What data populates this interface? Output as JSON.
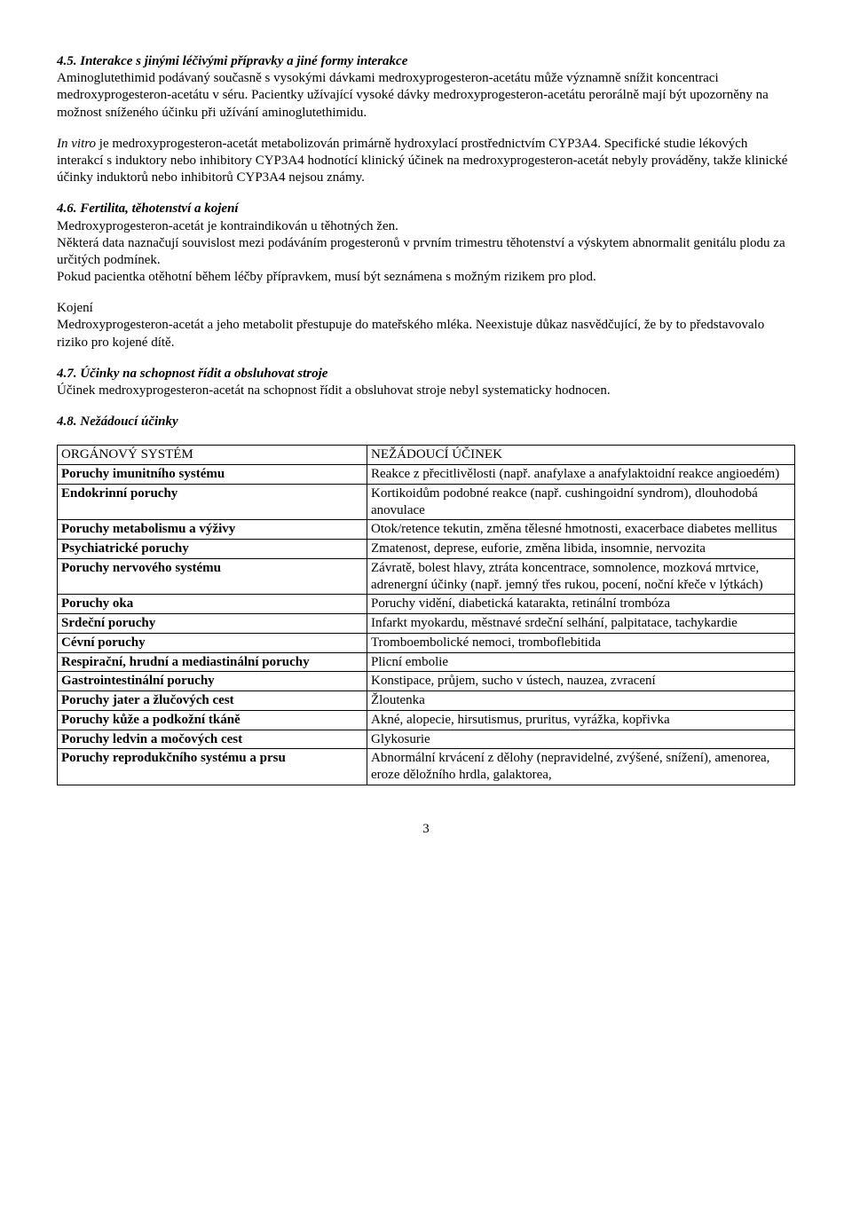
{
  "s45": {
    "title": "4.5. Interakce s jinými léčivými přípravky a jiné formy interakce",
    "p1": "Aminoglutethimid podávaný současně s vysokými dávkami medroxyprogesteron-acetátu může významně snížit koncentraci medroxyprogesteron-acetátu v séru. Pacientky užívající vysoké dávky medroxyprogesteron-acetátu perorálně mají být upozorněny na možnost sníženého účinku při užívání aminoglutethimidu.",
    "p2_prefix_italic": "In vitro",
    "p2_rest": " je medroxyprogesteron-acetát metabolizován primárně hydroxylací prostřednictvím CYP3A4. Specifické studie lékových interakcí s induktory nebo inhibitory CYP3A4 hodnotící klinický účinek na medroxyprogesteron-acetát nebyly prováděny, takže klinické účinky induktorů nebo inhibitorů CYP3A4 nejsou známy."
  },
  "s46": {
    "title": "4.6. Fertilita, těhotenství a kojení",
    "p1": "Medroxyprogesteron-acetát je kontraindikován u těhotných žen.",
    "p2": "Některá data naznačují souvislost mezi podáváním progesteronů v prvním trimestru těhotenství a výskytem abnormalit genitálu plodu za určitých podmínek.",
    "p3": "Pokud pacientka otěhotní během léčby přípravkem, musí být seznámena s možným rizikem pro plod.",
    "kojeni_label": "Kojení",
    "kojeni_text": "Medroxyprogesteron-acetát a jeho metabolit přestupuje do mateřského mléka. Neexistuje důkaz nasvědčující, že by to představovalo riziko pro kojené dítě."
  },
  "s47": {
    "title": "4.7. Účinky na schopnost řídit a obsluhovat stroje",
    "p1": "Účinek medroxyprogesteron-acetát na schopnost řídit a obsluhovat stroje nebyl systematicky hodnocen."
  },
  "s48": {
    "title": "4.8. Nežádoucí účinky"
  },
  "table": {
    "header_left": "ORGÁNOVÝ SYSTÉM",
    "header_right": "NEŽÁDOUCÍ ÚČINEK",
    "rows": [
      {
        "l": "Poruchy imunitního systému",
        "r": "Reakce z přecitlivělosti (např. anafylaxe a anafylaktoidní reakce angioedém)"
      },
      {
        "l": "Endokrinní poruchy",
        "r": "Kortikoidům podobné reakce (např. cushingoidní syndrom), dlouhodobá anovulace"
      },
      {
        "l": "Poruchy metabolismu a výživy",
        "r": "Otok/retence tekutin, změna tělesné hmotnosti, exacerbace diabetes mellitus"
      },
      {
        "l": "Psychiatrické poruchy",
        "r": "Zmatenost, deprese, euforie, změna libida, insomnie, nervozita"
      },
      {
        "l": "Poruchy nervového systému",
        "r": "Závratě, bolest hlavy, ztráta koncentrace, somnolence, mozková mrtvice, adrenergní účinky (např. jemný třes rukou, pocení, noční křeče v lýtkách)"
      },
      {
        "l": "Poruchy oka",
        "r": "Poruchy vidění, diabetická katarakta, retinální trombóza"
      },
      {
        "l": "Srdeční poruchy",
        "r": "Infarkt myokardu, městnavé srdeční selhání, palpitatace, tachykardie"
      },
      {
        "l": "Cévní poruchy",
        "r": "Tromboembolické nemoci, tromboflebitida"
      },
      {
        "l": "Respirační, hrudní a mediastinální poruchy",
        "r": "Plicní embolie"
      },
      {
        "l": "Gastrointestinální poruchy",
        "r": "Konstipace, průjem, sucho v ústech, nauzea, zvracení"
      },
      {
        "l": "Poruchy jater a žlučových cest",
        "r": "Žloutenka"
      },
      {
        "l": "Poruchy kůže a podkožní tkáně",
        "r": "Akné, alopecie, hirsutismus, pruritus, vyrážka, kopřivka"
      },
      {
        "l": "Poruchy ledvin a močových cest",
        "r": "Glykosurie"
      },
      {
        "l": "Poruchy reprodukčního systému a prsu",
        "r": "Abnormální krvácení z dělohy (nepravidelné, zvýšené, snížení), amenorea, eroze děložního hrdla, galaktorea,"
      }
    ]
  },
  "page_number": "3"
}
